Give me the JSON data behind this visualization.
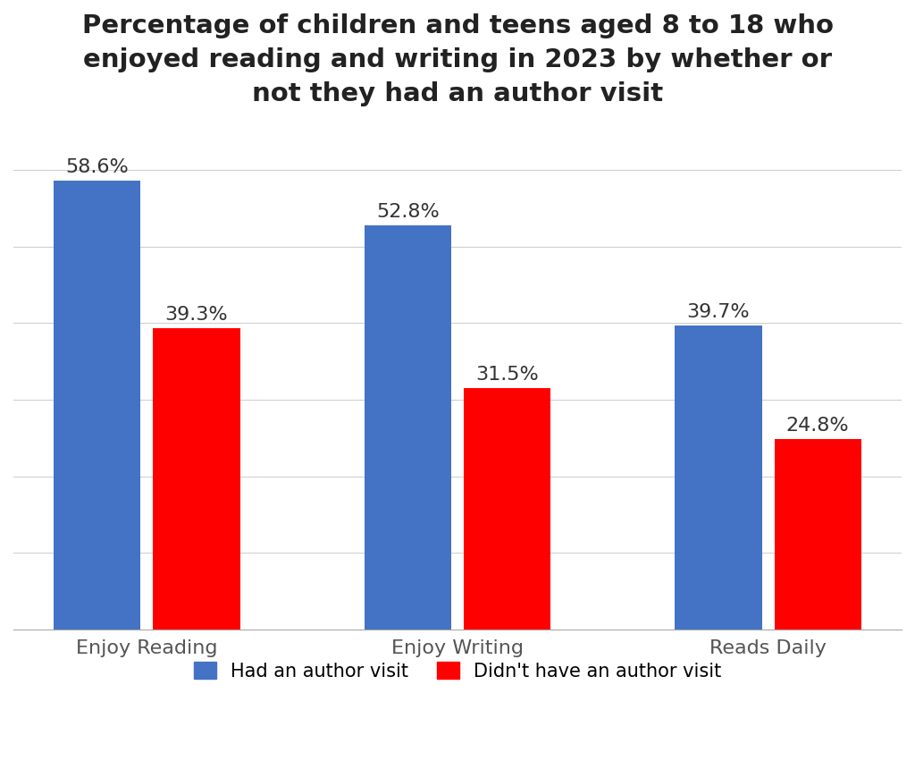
{
  "title": "Percentage of children and teens aged 8 to 18 who\nenjoyed reading and writing in 2023 by whether or\nnot they had an author visit",
  "categories": [
    "Enjoy Reading",
    "Enjoy Writing",
    "Reads Daily"
  ],
  "had_author_visit": [
    58.6,
    52.8,
    39.7
  ],
  "no_author_visit": [
    39.3,
    31.5,
    24.8
  ],
  "bar_color_blue": "#4472C4",
  "bar_color_red": "#FF0000",
  "background_color": "#FFFFFF",
  "legend_labels": [
    "Had an author visit",
    "Didn't have an author visit"
  ],
  "ylim": [
    0,
    65
  ],
  "bar_width": 0.28,
  "title_fontsize": 21,
  "tick_fontsize": 16,
  "annotation_fontsize": 16,
  "legend_fontsize": 15,
  "grid_color": "#D0D0D0",
  "yticks": [
    0,
    10,
    20,
    30,
    40,
    50,
    60
  ]
}
